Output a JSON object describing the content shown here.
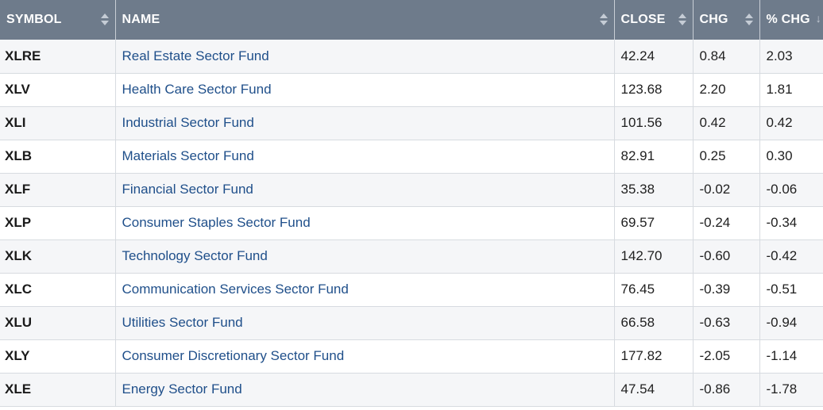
{
  "columns": {
    "symbol": "SYMBOL",
    "name": "NAME",
    "close": "CLOSE",
    "chg": "CHG",
    "pct_chg": "% CHG"
  },
  "sort": {
    "column": "pct_chg",
    "direction": "descending"
  },
  "rows": [
    {
      "symbol": "XLRE",
      "name": "Real Estate Sector Fund",
      "close": "42.24",
      "chg": "0.84",
      "pct_chg": "2.03"
    },
    {
      "symbol": "XLV",
      "name": "Health Care Sector Fund",
      "close": "123.68",
      "chg": "2.20",
      "pct_chg": "1.81"
    },
    {
      "symbol": "XLI",
      "name": "Industrial Sector Fund",
      "close": "101.56",
      "chg": "0.42",
      "pct_chg": "0.42"
    },
    {
      "symbol": "XLB",
      "name": "Materials Sector Fund",
      "close": "82.91",
      "chg": "0.25",
      "pct_chg": "0.30"
    },
    {
      "symbol": "XLF",
      "name": "Financial Sector Fund",
      "close": "35.38",
      "chg": "-0.02",
      "pct_chg": "-0.06"
    },
    {
      "symbol": "XLP",
      "name": "Consumer Staples Sector Fund",
      "close": "69.57",
      "chg": "-0.24",
      "pct_chg": "-0.34"
    },
    {
      "symbol": "XLK",
      "name": "Technology Sector Fund",
      "close": "142.70",
      "chg": "-0.60",
      "pct_chg": "-0.42"
    },
    {
      "symbol": "XLC",
      "name": "Communication Services Sector Fund",
      "close": "76.45",
      "chg": "-0.39",
      "pct_chg": "-0.51"
    },
    {
      "symbol": "XLU",
      "name": "Utilities Sector Fund",
      "close": "66.58",
      "chg": "-0.63",
      "pct_chg": "-0.94"
    },
    {
      "symbol": "XLY",
      "name": "Consumer Discretionary Sector Fund",
      "close": "177.82",
      "chg": "-2.05",
      "pct_chg": "-1.14"
    },
    {
      "symbol": "XLE",
      "name": "Energy Sector Fund",
      "close": "47.54",
      "chg": "-0.86",
      "pct_chg": "-1.78"
    }
  ],
  "colors": {
    "header_bg": "#6e7b8b",
    "link": "#1f4f8a",
    "row_alt": "#f5f6f8"
  }
}
